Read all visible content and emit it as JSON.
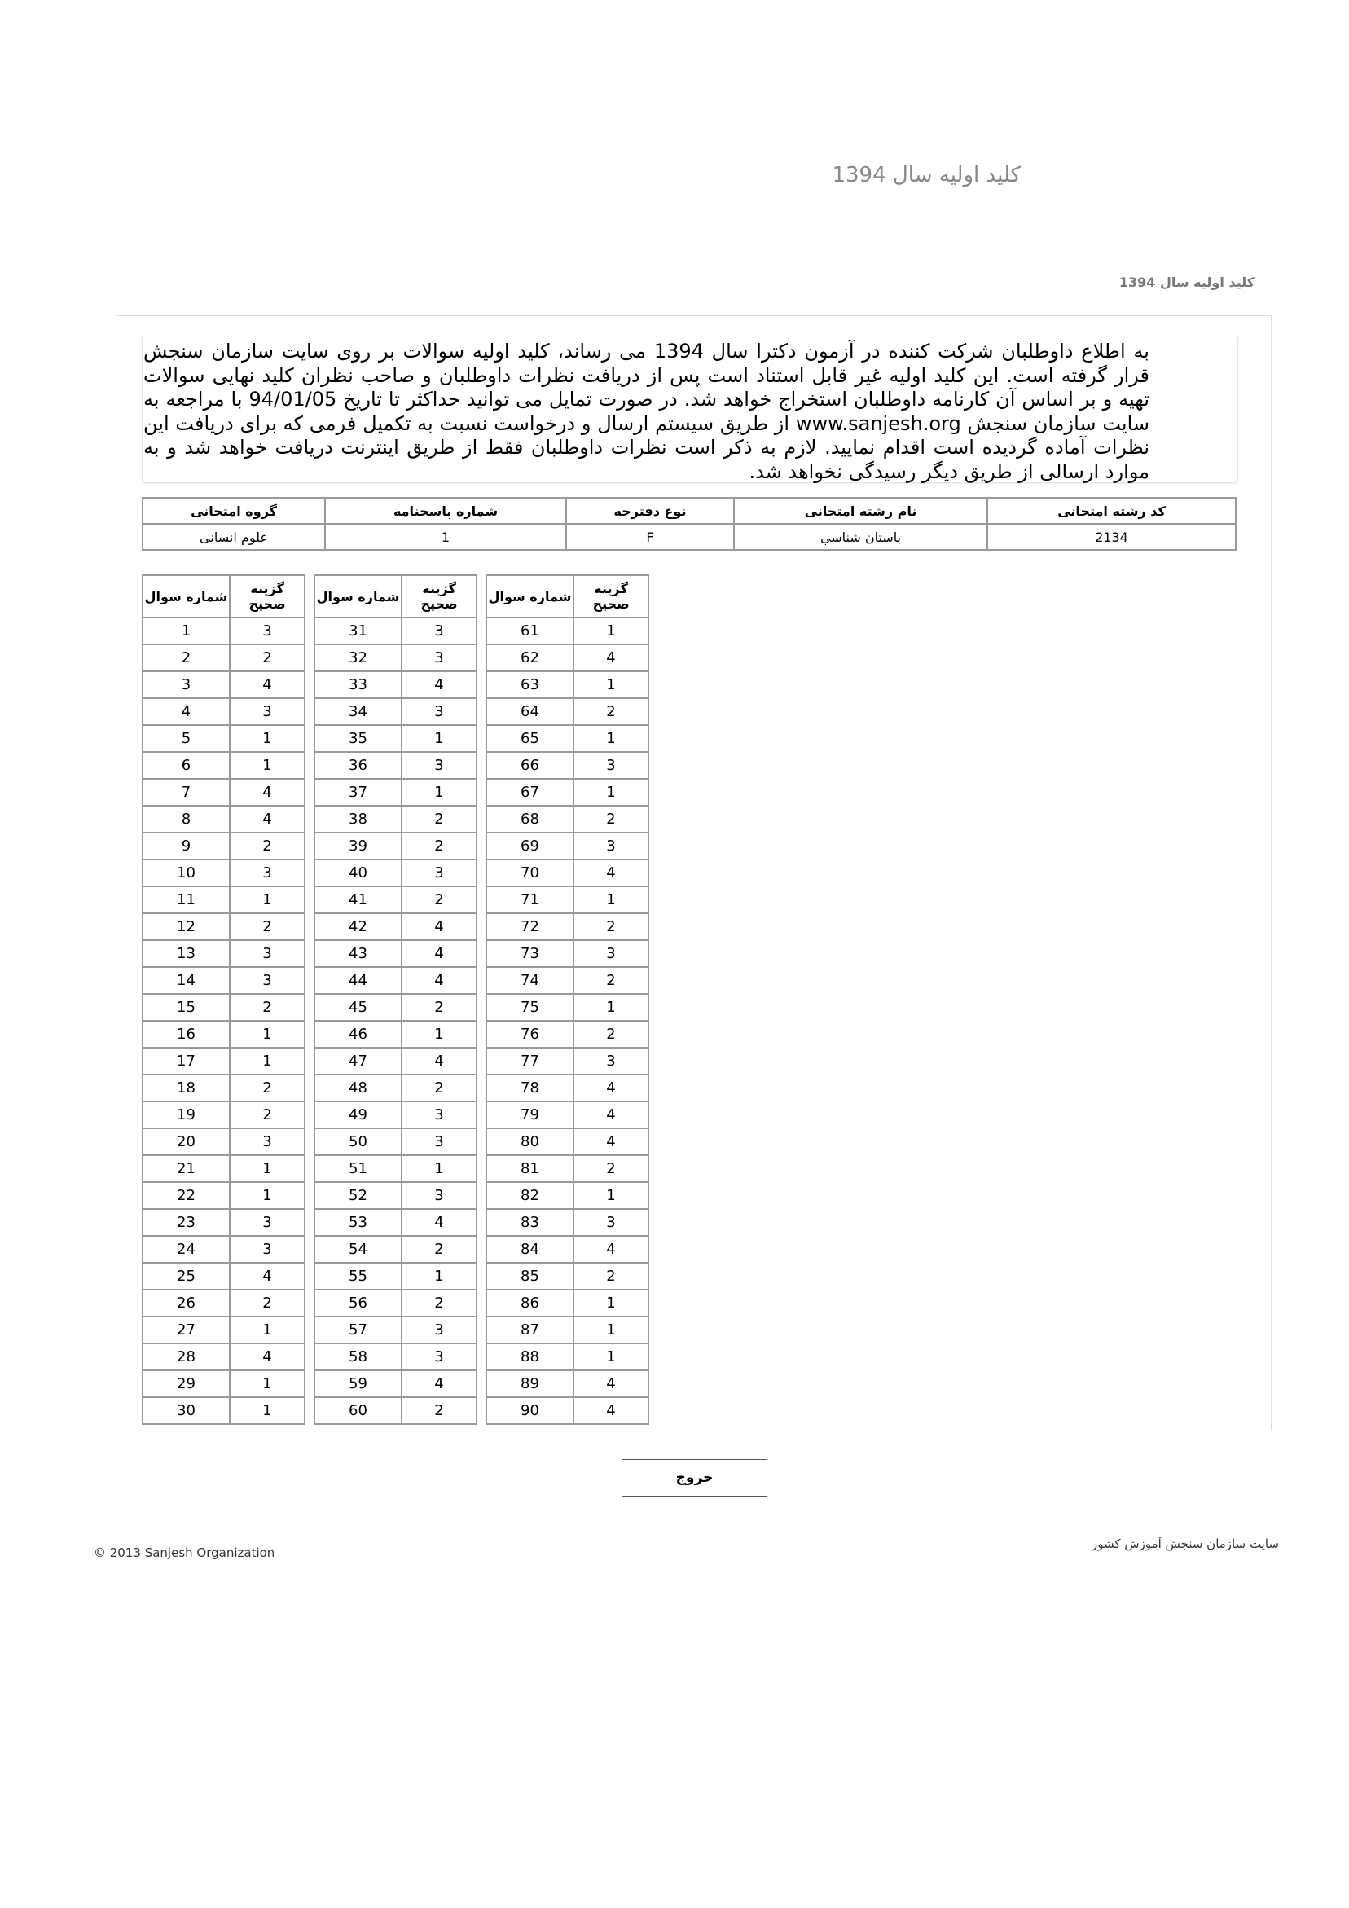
{
  "header": {
    "title": "کلید اولیه سال 1394",
    "subtitle": "کلید اولیه سال 1394"
  },
  "notice": "به اطلاع داوطلبان شرکت کننده در آزمون دکترا سال 1394 می رساند، کلید اولیه سوالات بر روی سایت سازمان سنجش قرار گرفته است. این کلید اولیه غیر قابل استناد است پس از دریافت نظرات داوطلبان و صاحب نظران کلید نهایی سوالات تهیه و بر اساس آن کارنامه داوطلبان استخراج خواهد شد. در صورت تمایل می توانید حداکثر تا تاریخ 94/01/05 با مراجعه به سایت سازمان سنجش www.sanjesh.org از طریق  سیستم ارسال و درخواست نسبت به تکمیل فرمی که برای دریافت این نظرات آماده گردیده است اقدام نمایید. لازم به ذکر است نظرات داوطلبان فقط از طریق اینترنت دریافت خواهد شد و به موارد ارسالی از طریق دیگر رسیدگی نخواهد شد.",
  "info_table": {
    "headers": [
      "کد رشته امتحانی",
      "نام رشته امتحانی",
      "نوع دفترچه",
      "شماره پاسخنامه",
      "گروه امتحانی"
    ],
    "values": [
      "2134",
      "باستان شناسي",
      "F",
      "1",
      "علوم انسانی"
    ]
  },
  "answer_table": {
    "header_question": "شماره سوال",
    "header_answer": "گزینه صحیح",
    "answers": [
      3,
      2,
      4,
      3,
      1,
      1,
      4,
      4,
      2,
      3,
      1,
      2,
      3,
      3,
      2,
      1,
      1,
      2,
      2,
      3,
      1,
      1,
      3,
      3,
      4,
      2,
      1,
      4,
      1,
      1,
      3,
      3,
      4,
      3,
      1,
      3,
      1,
      2,
      2,
      3,
      2,
      4,
      4,
      4,
      2,
      1,
      4,
      2,
      3,
      3,
      1,
      3,
      4,
      2,
      1,
      2,
      3,
      3,
      4,
      2,
      1,
      4,
      1,
      2,
      1,
      3,
      1,
      2,
      3,
      4,
      1,
      2,
      3,
      2,
      1,
      2,
      3,
      4,
      4,
      4,
      2,
      1,
      3,
      4,
      2,
      1,
      1,
      1,
      4,
      4
    ]
  },
  "exit_button": "خروج",
  "footer": {
    "copyright": "© 2013 Sanjesh Organization",
    "site_name": "سایت سازمان سنجش آموزش کشور"
  }
}
